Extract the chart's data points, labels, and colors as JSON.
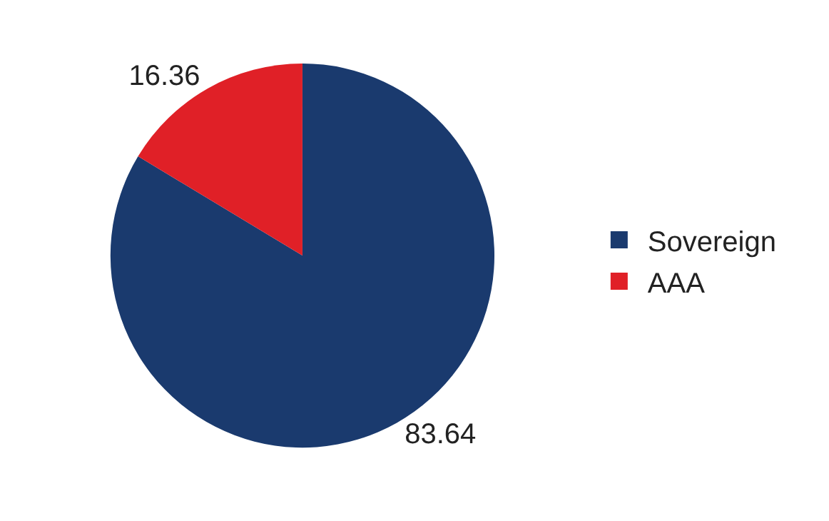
{
  "chart_data": {
    "type": "pie",
    "categories": [
      "Sovereign",
      "AAA"
    ],
    "values": [
      83.64,
      16.36
    ],
    "colors": [
      "#1a3a6e",
      "#e02027"
    ],
    "data_labels": true,
    "legend": "right"
  }
}
